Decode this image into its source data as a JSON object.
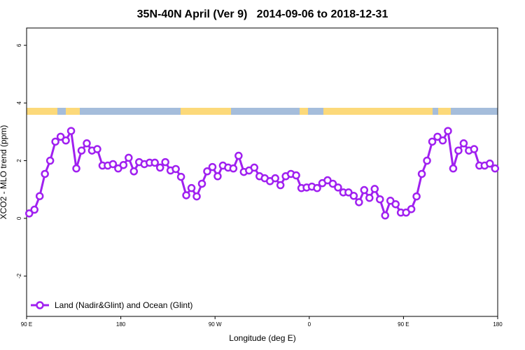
{
  "chart_data": {
    "type": "line",
    "title": "35N-40N April (Ver 9)   2014-09-06 to 2018-12-31",
    "x_label": "Longitude (deg E)",
    "y_label": "XCO2 - MLO trend (ppm)",
    "xlim": [
      90,
      540
    ],
    "ylim": [
      -3.4,
      6.6
    ],
    "xticks": [
      {
        "value": 90,
        "label": "90 E"
      },
      180,
      {
        "value": 270,
        "label": "90 W"
      },
      {
        "value": 360,
        "label": "0"
      },
      {
        "value": 450,
        "label": "90 E"
      },
      {
        "value": 540,
        "label": "180"
      }
    ],
    "yticks": [
      -2,
      0,
      2,
      4,
      6
    ],
    "grid": false,
    "legend": "bottomleft",
    "x": [
      92.5,
      97.5,
      102.5,
      107.5,
      112.5,
      117.5,
      122.5,
      127.5,
      132.5,
      137.5,
      142.5,
      147.5,
      152.5,
      157.5,
      162.5,
      167.5,
      172.5,
      177.5,
      182.5,
      187.5,
      192.5,
      197.5,
      202.5,
      207.5,
      212.5,
      217.5,
      222.5,
      227.5,
      232.5,
      237.5,
      242.5,
      247.5,
      252.5,
      257.5,
      262.5,
      267.5,
      272.5,
      277.5,
      282.5,
      287.5,
      292.5,
      297.5,
      302.5,
      307.5,
      312.5,
      317.5,
      322.5,
      327.5,
      332.5,
      337.5,
      342.5,
      347.5,
      352.5,
      357.5,
      362.5,
      367.5,
      372.5,
      377.5,
      382.5,
      387.5,
      392.5,
      397.5,
      402.5,
      407.5,
      412.5,
      417.5,
      422.5,
      427.5,
      432.5,
      437.5,
      442.5,
      447.5,
      452.5,
      457.5,
      462.5,
      467.5,
      472.5,
      477.5,
      482.5,
      487.5,
      492.5,
      497.5,
      502.5,
      507.5,
      512.5,
      517.5,
      522.5,
      527.5,
      532.5,
      537.5
    ],
    "series": [
      {
        "name": "Land (Nadir&Glint) and Ocean (Glint)",
        "color": "#a020f0",
        "values": [
          0.17,
          0.3,
          0.77,
          1.54,
          2.0,
          2.66,
          2.83,
          2.7,
          3.03,
          1.73,
          2.35,
          2.6,
          2.35,
          2.4,
          1.83,
          1.83,
          1.88,
          1.73,
          1.85,
          2.1,
          1.63,
          1.95,
          1.88,
          1.93,
          1.93,
          1.76,
          1.95,
          1.66,
          1.71,
          1.44,
          0.8,
          1.05,
          0.76,
          1.2,
          1.63,
          1.78,
          1.46,
          1.83,
          1.76,
          1.73,
          2.17,
          1.61,
          1.66,
          1.76,
          1.46,
          1.39,
          1.29,
          1.39,
          1.15,
          1.46,
          1.54,
          1.49,
          1.05,
          1.07,
          1.1,
          1.05,
          1.22,
          1.32,
          1.2,
          1.07,
          0.9,
          0.9,
          0.78,
          0.56,
          0.98,
          0.71,
          1.02,
          0.66,
          0.1,
          0.61,
          0.49,
          0.2,
          0.2,
          0.32,
          0.76,
          1.54,
          2.0,
          2.66,
          2.83,
          2.7,
          3.03,
          1.73,
          2.35,
          2.6,
          2.35,
          2.4,
          1.83,
          1.83,
          1.9,
          1.73
        ]
      }
    ]
  }
}
